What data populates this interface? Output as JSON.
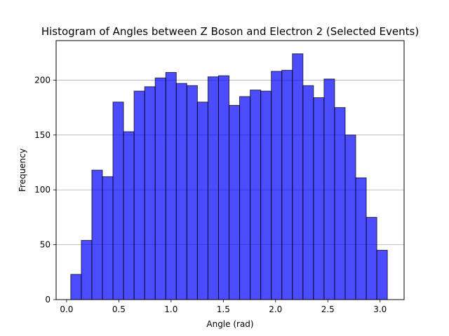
{
  "chart_data": {
    "type": "bar",
    "title": "Histogram of Angles between Z Boson and Electron 2 (Selected Events)",
    "xlabel": "Angle (rad)",
    "ylabel": "Frequency",
    "xlim": [
      -0.1,
      3.23
    ],
    "ylim": [
      0,
      236
    ],
    "xticks": [
      0.0,
      0.5,
      1.0,
      1.5,
      2.0,
      2.5,
      3.0
    ],
    "xtick_labels": [
      "0.0",
      "0.5",
      "1.0",
      "1.5",
      "2.0",
      "2.5",
      "3.0"
    ],
    "yticks": [
      0,
      50,
      100,
      150,
      200
    ],
    "ytick_labels": [
      "0",
      "50",
      "100",
      "150",
      "200"
    ],
    "grid": "horizontal",
    "bar_color": "#0000ff",
    "bar_opacity": 0.7,
    "edge_color": "#000000",
    "bin_edges": [
      0.04,
      0.141,
      0.242,
      0.343,
      0.444,
      0.545,
      0.646,
      0.747,
      0.848,
      0.949,
      1.05,
      1.151,
      1.252,
      1.353,
      1.454,
      1.555,
      1.656,
      1.757,
      1.858,
      1.959,
      2.06,
      2.161,
      2.262,
      2.363,
      2.464,
      2.565,
      2.666,
      2.767,
      2.868,
      2.969,
      3.07
    ],
    "values": [
      23,
      54,
      118,
      112,
      180,
      153,
      190,
      194,
      202,
      207,
      197,
      195,
      180,
      203,
      204,
      177,
      185,
      191,
      190,
      208,
      209,
      224,
      195,
      184,
      201,
      175,
      150,
      111,
      75,
      45
    ]
  }
}
